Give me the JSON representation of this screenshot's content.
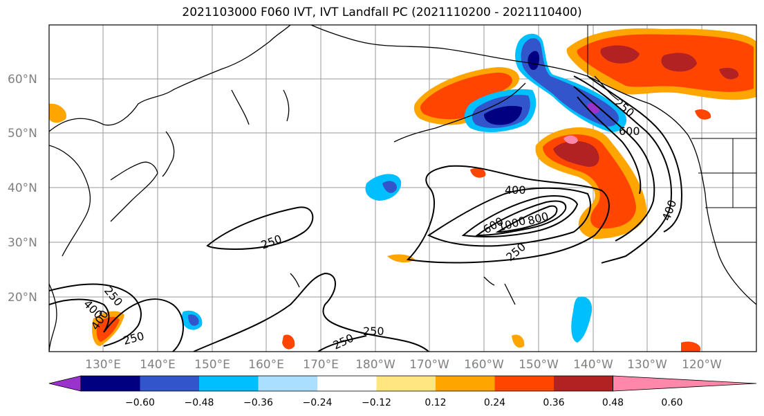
{
  "title": "2021103000 F060 IVT, IVT Landfall PC (2021110200 - 2021110400)",
  "lat_labels": [
    "60°N",
    "50°N",
    "40°N",
    "30°N",
    "20°N"
  ],
  "lon_labels": [
    "130°E",
    "140°E",
    "150°E",
    "160°E",
    "170°E",
    "180°W",
    "170°W",
    "160°W",
    "150°W",
    "140°W",
    "130°W",
    "120°W"
  ],
  "colorbar": {
    "colors": [
      "#9933cc",
      "#000080",
      "#3355cc",
      "#00bfff",
      "#aadfff",
      "#ffffff",
      "#ffe680",
      "#ffa500",
      "#ff4500",
      "#b22222",
      "#ff88aa"
    ],
    "tick_labels": [
      "−0.60",
      "−0.48",
      "−0.36",
      "−0.24",
      "−0.12",
      "0.12",
      "0.24",
      "0.36",
      "0.48",
      "0.60"
    ]
  },
  "contour_labels": [
    "250",
    "250",
    "250",
    "250",
    "250",
    "250",
    "400",
    "400",
    "400",
    "400",
    "600",
    "800",
    "1000",
    "600",
    "250"
  ]
}
